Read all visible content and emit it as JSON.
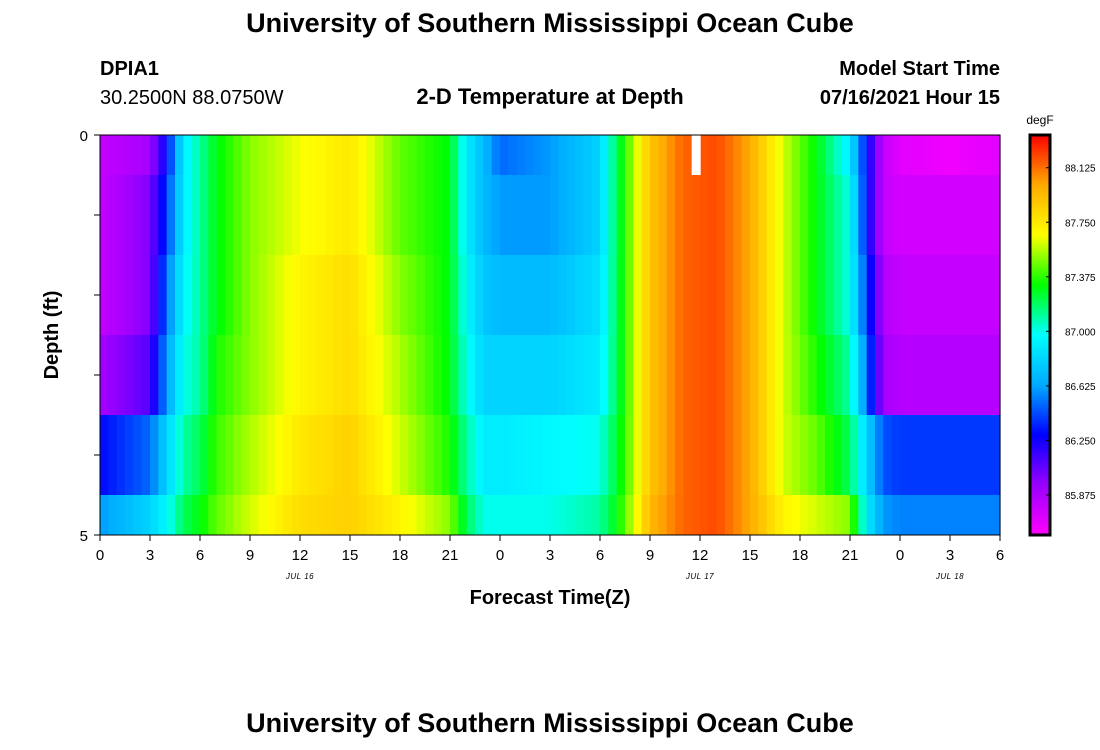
{
  "page": {
    "title": "University of Southern Mississippi Ocean Cube",
    "footer_title": "University of Southern Mississippi Ocean Cube",
    "station_id": "DPIA1",
    "station_coords": "30.2500N  88.0750W",
    "center_title": "2-D Temperature at Depth",
    "start_label": "Model Start Time",
    "start_time": "07/16/2021 Hour 15"
  },
  "chart_data": {
    "type": "heatmap",
    "title": "2-D Temperature at Depth",
    "xlabel": "Forecast Time(Z)",
    "ylabel": "Depth (ft)",
    "x_tick_labels": [
      "0",
      "3",
      "6",
      "9",
      "12",
      "15",
      "18",
      "21",
      "0",
      "3",
      "6",
      "9",
      "12",
      "15",
      "18",
      "21",
      "0",
      "3",
      "6"
    ],
    "x_range_hours": [
      0,
      54
    ],
    "date_labels": [
      {
        "label": "JUL 16",
        "hour": 12
      },
      {
        "label": "JUL 17",
        "hour": 36
      },
      {
        "label": "JUL 18",
        "hour": 51
      }
    ],
    "y_tick_labels": [
      "0",
      "5"
    ],
    "y_range_ft": [
      0,
      5
    ],
    "depth_bin_edges_ft": [
      0,
      0.5,
      1.5,
      2.5,
      3.5,
      4.5,
      5
    ],
    "colorbar": {
      "unit": "degF",
      "tick_labels": [
        "88.125",
        "87.750",
        "87.375",
        "87.000",
        "86.625",
        "86.250",
        "85.875"
      ],
      "tick_values": [
        88.125,
        87.75,
        87.375,
        87.0,
        86.625,
        86.25,
        85.875
      ],
      "min": 85.6,
      "max": 88.35,
      "colormap": [
        "#ff00ff",
        "#9900ff",
        "#0000ff",
        "#00aaff",
        "#00ffff",
        "#00ff00",
        "#ffff00",
        "#ffaa00",
        "#ff0000"
      ]
    },
    "missing_cells": [
      {
        "hour": 35.5,
        "depth_row": 0
      }
    ],
    "time_hours": [
      0,
      3,
      4,
      5,
      6,
      7,
      9,
      12,
      15,
      18,
      21,
      22,
      23,
      24,
      27,
      30,
      31,
      32,
      33,
      35,
      37,
      39,
      41,
      43,
      45,
      46,
      47,
      48,
      51,
      54
    ],
    "depth_rows": [
      [
        85.8,
        85.9,
        86.3,
        86.9,
        87.1,
        87.3,
        87.5,
        87.65,
        87.75,
        87.45,
        87.3,
        86.9,
        86.7,
        86.5,
        86.6,
        86.8,
        87.2,
        87.55,
        87.9,
        88.15,
        88.2,
        88.0,
        87.6,
        87.3,
        86.9,
        86.3,
        85.8,
        85.7,
        85.65,
        85.7
      ],
      [
        85.8,
        86.0,
        86.4,
        86.9,
        87.1,
        87.3,
        87.5,
        87.65,
        87.75,
        87.45,
        87.3,
        86.9,
        86.7,
        86.6,
        86.6,
        86.8,
        87.2,
        87.55,
        87.9,
        88.15,
        88.2,
        88.0,
        87.6,
        87.3,
        87.0,
        86.3,
        85.8,
        85.75,
        85.75,
        85.75
      ],
      [
        85.8,
        86.0,
        86.5,
        86.95,
        87.1,
        87.3,
        87.5,
        87.7,
        87.8,
        87.5,
        87.3,
        86.95,
        86.75,
        86.7,
        86.7,
        86.85,
        87.2,
        87.55,
        87.9,
        88.15,
        88.2,
        88.0,
        87.6,
        87.3,
        87.0,
        86.4,
        85.85,
        85.8,
        85.8,
        85.8
      ],
      [
        85.9,
        86.1,
        86.6,
        87.0,
        87.1,
        87.35,
        87.5,
        87.7,
        87.8,
        87.55,
        87.3,
        87.0,
        86.8,
        86.8,
        86.8,
        86.9,
        87.2,
        87.55,
        87.9,
        88.15,
        88.2,
        88.0,
        87.6,
        87.35,
        87.1,
        86.5,
        85.9,
        85.85,
        85.85,
        85.85
      ],
      [
        86.3,
        86.5,
        86.8,
        87.1,
        87.2,
        87.4,
        87.55,
        87.75,
        87.85,
        87.6,
        87.35,
        87.1,
        86.9,
        86.9,
        86.95,
        87.0,
        87.25,
        87.55,
        87.9,
        88.15,
        88.2,
        88.0,
        87.6,
        87.45,
        87.2,
        86.8,
        86.45,
        86.4,
        86.4,
        86.4
      ],
      [
        86.6,
        86.8,
        86.95,
        87.2,
        87.3,
        87.45,
        87.6,
        87.8,
        87.85,
        87.7,
        87.5,
        87.2,
        87.0,
        87.0,
        87.0,
        87.1,
        87.3,
        87.6,
        87.95,
        88.15,
        88.2,
        88.0,
        87.7,
        87.6,
        87.5,
        86.9,
        86.6,
        86.55,
        86.55,
        86.55
      ]
    ]
  }
}
